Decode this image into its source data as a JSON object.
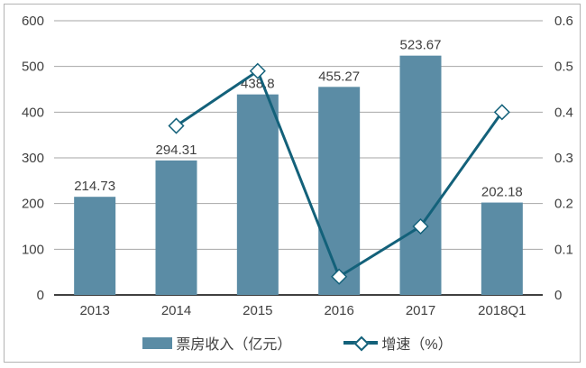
{
  "chart_data": {
    "type": "bar",
    "subtype": "bar+line-combo",
    "categories": [
      "2013",
      "2014",
      "2015",
      "2016",
      "2017",
      "2018Q1"
    ],
    "series": [
      {
        "name": "票房收入（亿元）",
        "type": "bar",
        "axis": "left",
        "values": [
          214.73,
          294.31,
          438.8,
          455.27,
          523.67,
          202.18
        ],
        "labels": [
          "214.73",
          "294.31",
          "438.8",
          "455.27",
          "523.67",
          "202.18"
        ],
        "color": "#5b8ca5"
      },
      {
        "name": "增速（%）",
        "type": "line",
        "axis": "right",
        "values": [
          null,
          0.37,
          0.49,
          0.04,
          0.15,
          0.4
        ],
        "color": "#13617a",
        "marker": "diamond",
        "marker_fill": "#ffffff"
      }
    ],
    "title": "",
    "xlabel": "",
    "ylabel": "",
    "left_axis": {
      "min": 0,
      "max": 600,
      "step": 100,
      "ticks": [
        "0",
        "100",
        "200",
        "300",
        "400",
        "500",
        "600"
      ]
    },
    "right_axis": {
      "min": 0,
      "max": 0.6,
      "step": 0.1,
      "ticks": [
        "0",
        "0.1",
        "0.2",
        "0.3",
        "0.4",
        "0.5",
        "0.6"
      ]
    },
    "grid": true,
    "legend_position": "bottom"
  },
  "legend": {
    "bar_label": "票房收入（亿元）",
    "line_label": "增速（%）"
  },
  "colors": {
    "bar": "#5b8ca5",
    "line": "#13617a",
    "marker_fill": "#ffffff",
    "grid": "#a6a6a6",
    "baseline": "#404040",
    "text": "#404040",
    "frame": "#b3b3b3"
  }
}
